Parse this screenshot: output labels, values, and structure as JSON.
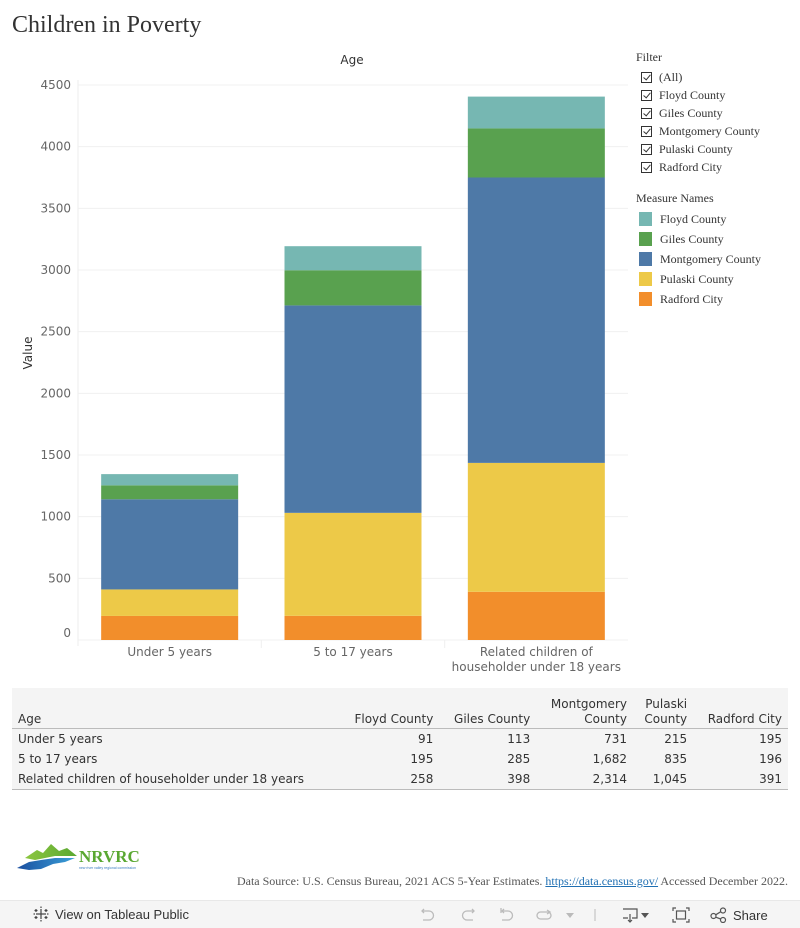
{
  "title": "Children in Poverty",
  "filter": {
    "header": "Filter",
    "items": [
      {
        "label": "(All)",
        "checked": true
      },
      {
        "label": "Floyd County",
        "checked": true
      },
      {
        "label": "Giles County",
        "checked": true
      },
      {
        "label": "Montgomery County",
        "checked": true
      },
      {
        "label": "Pulaski County",
        "checked": true
      },
      {
        "label": "Radford City",
        "checked": true
      }
    ]
  },
  "legend": {
    "header": "Measure Names",
    "items": [
      {
        "label": "Floyd County",
        "color": "#76b7b2"
      },
      {
        "label": "Giles County",
        "color": "#59a14f"
      },
      {
        "label": "Montgomery County",
        "color": "#4e79a7"
      },
      {
        "label": "Pulaski County",
        "color": "#edc948"
      },
      {
        "label": "Radford City",
        "color": "#f28e2b"
      }
    ]
  },
  "chart_data": {
    "type": "bar",
    "stacked": true,
    "title": "Age",
    "xlabel": "",
    "ylabel": "Value",
    "ylim": [
      0,
      4500
    ],
    "yticks": [
      0,
      500,
      1000,
      1500,
      2000,
      2500,
      3000,
      3500,
      4000,
      4500
    ],
    "grid": true,
    "legend_position": "right",
    "categories": [
      [
        "Under 5 years"
      ],
      [
        "5 to 17 years"
      ],
      [
        "Related children of",
        "householder under 18 years"
      ]
    ],
    "stack_order_bottom_to_top": [
      "Radford City",
      "Pulaski County",
      "Montgomery County",
      "Giles County",
      "Floyd County"
    ],
    "series": [
      {
        "name": "Floyd County",
        "color": "#76b7b2",
        "values": [
          91,
          195,
          258
        ]
      },
      {
        "name": "Giles County",
        "color": "#59a14f",
        "values": [
          113,
          285,
          398
        ]
      },
      {
        "name": "Montgomery County",
        "color": "#4e79a7",
        "values": [
          731,
          1682,
          2314
        ]
      },
      {
        "name": "Pulaski County",
        "color": "#edc948",
        "values": [
          215,
          835,
          1045
        ]
      },
      {
        "name": "Radford City",
        "color": "#f28e2b",
        "values": [
          195,
          196,
          391
        ]
      }
    ]
  },
  "table": {
    "headers": [
      [
        "Age"
      ],
      [
        "Floyd County"
      ],
      [
        "Giles County"
      ],
      [
        "Montgomery",
        "County"
      ],
      [
        "Pulaski",
        "County"
      ],
      [
        "Radford City"
      ]
    ],
    "rows": [
      [
        "Under 5 years",
        "91",
        "113",
        "731",
        "215",
        "195"
      ],
      [
        "5 to 17 years",
        "195",
        "285",
        "1,682",
        "835",
        "196"
      ],
      [
        "Related children of householder under 18 years",
        "258",
        "398",
        "2,314",
        "1,045",
        "391"
      ]
    ]
  },
  "logo": {
    "text": "NRVRC",
    "tagline": "new river valley regional commission"
  },
  "source": {
    "prefix": "Data Source: U.S. Census Bureau, 2021 ACS 5-Year Estimates. ",
    "link": "https://data.census.gov/",
    "suffix": " Accessed December 2022."
  },
  "toolbar": {
    "view_label": "View on Tableau Public",
    "share_label": "Share",
    "icons": [
      "undo-icon",
      "redo-icon",
      "revert-icon",
      "refresh-icon",
      "dropdown-arrow-icon",
      "download-icon",
      "fullscreen-icon",
      "share-icon"
    ]
  }
}
